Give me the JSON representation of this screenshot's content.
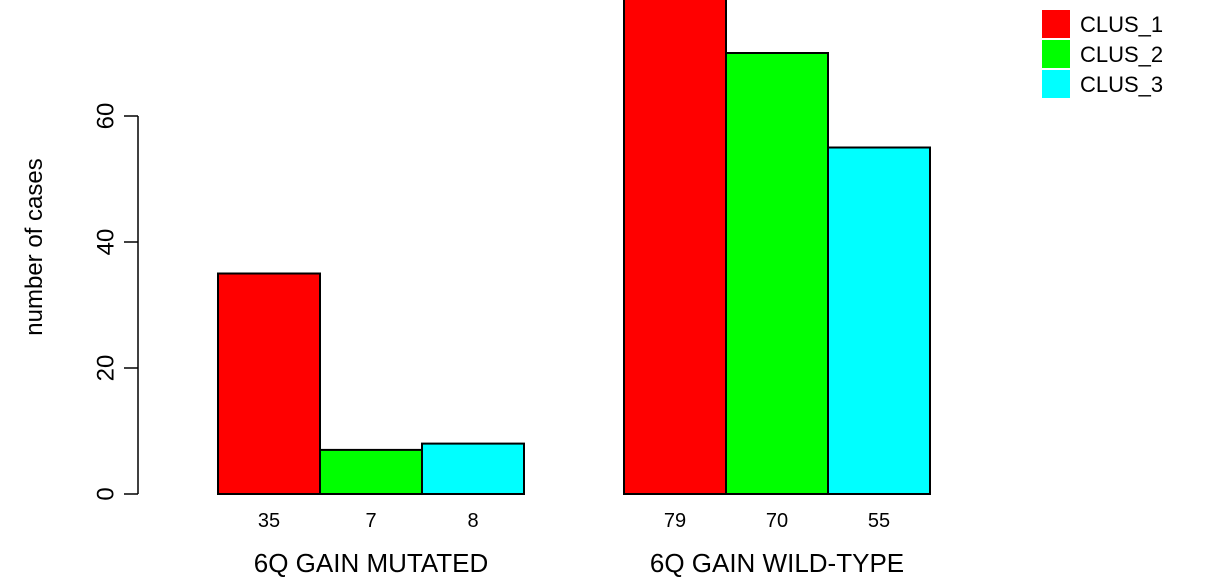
{
  "chart_data": {
    "type": "bar",
    "title": "",
    "xlabel": "",
    "ylabel": "number of cases",
    "ylim": [
      0,
      80
    ],
    "yticks": [
      0,
      20,
      40,
      60
    ],
    "grid": false,
    "legend_position": "top-right",
    "groups": [
      {
        "label": "6Q GAIN MUTATED",
        "values": [
          35,
          7,
          8
        ],
        "value_labels": [
          "35",
          "7",
          "8"
        ]
      },
      {
        "label": "6Q GAIN WILD-TYPE",
        "values": [
          79,
          70,
          55
        ],
        "value_labels": [
          "79",
          "70",
          "55"
        ]
      }
    ],
    "series": [
      {
        "name": "CLUS_1",
        "color": "#ff0000"
      },
      {
        "name": "CLUS_2",
        "color": "#00ff00"
      },
      {
        "name": "CLUS_3",
        "color": "#00ffff"
      }
    ]
  }
}
